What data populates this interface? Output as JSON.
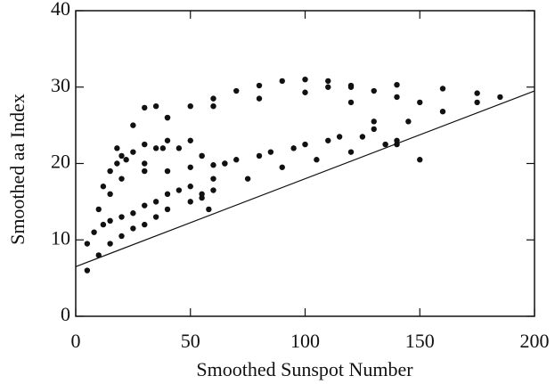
{
  "chart_data": {
    "type": "scatter",
    "xlabel": "Smoothed Sunspot Number",
    "ylabel": "Smoothed aa Index",
    "xlim": [
      0,
      200
    ],
    "ylim": [
      0,
      40
    ],
    "xticks": [
      0,
      50,
      100,
      150,
      200
    ],
    "yticks": [
      0,
      10,
      20,
      30,
      40
    ],
    "color": "#111111",
    "x": [
      40,
      50,
      60,
      70,
      80,
      90,
      100,
      110,
      120,
      130,
      140,
      150,
      60,
      80,
      100,
      120,
      140,
      160,
      175,
      185,
      175,
      160,
      145,
      130,
      115,
      100,
      85,
      70,
      60,
      110,
      120,
      130,
      140,
      150,
      140,
      125,
      110,
      95,
      80,
      65,
      60,
      75,
      90,
      105,
      120,
      135,
      25,
      30,
      35,
      40,
      38,
      30,
      22,
      18,
      5,
      8,
      12,
      15,
      20,
      25,
      30,
      35,
      40,
      45,
      50,
      55,
      58,
      5,
      10,
      15,
      20,
      25,
      30,
      35,
      40,
      50,
      55,
      60,
      15,
      20,
      30,
      40,
      50,
      55,
      50,
      40,
      30,
      20,
      15,
      10,
      12,
      18,
      25,
      35,
      45,
      55,
      65
    ],
    "y": [
      26,
      27.5,
      28.5,
      29.5,
      30.2,
      30.8,
      31,
      30.8,
      30.2,
      29.5,
      28.7,
      28,
      27.5,
      28.5,
      29.3,
      30,
      30.3,
      29.8,
      29.2,
      28.7,
      28,
      26.8,
      25.5,
      24.5,
      23.5,
      22.5,
      21.5,
      20.5,
      19.8,
      30,
      28,
      25.5,
      23,
      20.5,
      22.5,
      23.5,
      23,
      22,
      21,
      20,
      16.5,
      18,
      19.5,
      20.5,
      21.5,
      22.5,
      25,
      27.3,
      27.5,
      26,
      22,
      20,
      20.5,
      22,
      9.5,
      11,
      12,
      12.5,
      13,
      13.5,
      14.5,
      15,
      16,
      16.5,
      17,
      15.5,
      14,
      6,
      8,
      9.5,
      10.5,
      11.5,
      12,
      13,
      14,
      15,
      16,
      18,
      16,
      18,
      19,
      19,
      19.5,
      21,
      23,
      23,
      22.5,
      21,
      19,
      14,
      17,
      20,
      21.5,
      22,
      22,
      21,
      20
    ],
    "reference_line": {
      "x": [
        0,
        200
      ],
      "y": [
        6.5,
        29.5
      ]
    }
  }
}
